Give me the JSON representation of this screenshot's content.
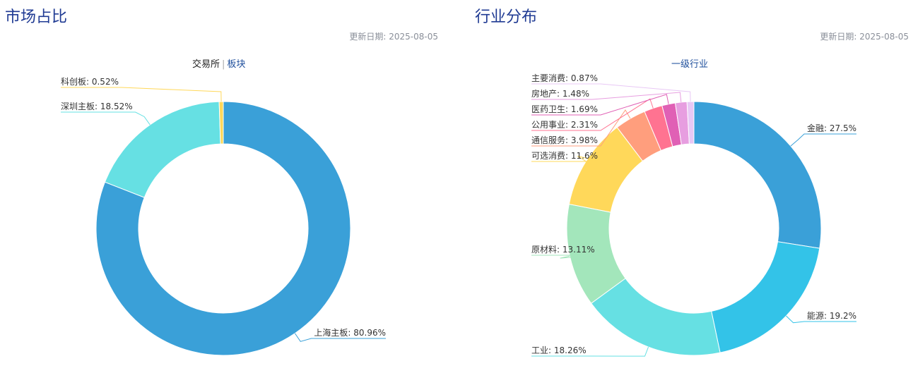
{
  "left": {
    "title": "市场占比",
    "date": "更新日期: 2025-08-05",
    "tabs": [
      {
        "label": "交易所",
        "active": true
      },
      {
        "label": "板块",
        "active": false
      }
    ]
  },
  "right": {
    "title": "行业分布",
    "date": "更新日期: 2025-08-05",
    "subtitle": "一级行业"
  },
  "chart_data": [
    {
      "type": "pie",
      "donut": true,
      "title": "",
      "label_format": "{name}: {value}%",
      "slices": [
        {
          "name": "上海主板",
          "value": 80.96,
          "color": "#3aa0d8"
        },
        {
          "name": "深圳主板",
          "value": 18.52,
          "color": "#66e0e3"
        },
        {
          "name": "科创板",
          "value": 0.52,
          "color": "#ffd85a"
        }
      ]
    },
    {
      "type": "pie",
      "donut": true,
      "title": "",
      "label_format": "{name}: {value}%",
      "slices": [
        {
          "name": "金融",
          "value": 27.5,
          "color": "#3aa0d8"
        },
        {
          "name": "能源",
          "value": 19.2,
          "color": "#33c3e8"
        },
        {
          "name": "工业",
          "value": 18.26,
          "color": "#66e0e3"
        },
        {
          "name": "原材料",
          "value": 13.11,
          "color": "#a3e6bb"
        },
        {
          "name": "可选消费",
          "value": 11.6,
          "color": "#ffd85a"
        },
        {
          "name": "通信服务",
          "value": 3.98,
          "color": "#ff9e7d"
        },
        {
          "name": "公用事业",
          "value": 2.31,
          "color": "#ff7391"
        },
        {
          "name": "医药卫生",
          "value": 1.69,
          "color": "#e060b5"
        },
        {
          "name": "房地产",
          "value": 1.48,
          "color": "#e79ee0"
        },
        {
          "name": "主要消费",
          "value": 0.87,
          "color": "#e8c8f5"
        }
      ]
    }
  ]
}
